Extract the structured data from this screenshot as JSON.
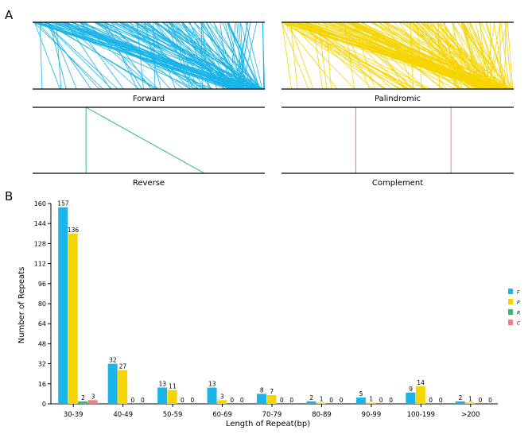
{
  "panel_a": {
    "label": "A",
    "panels": [
      {
        "name": "forward",
        "title": "Forward",
        "color": "#1AB4E8",
        "links": 157
      },
      {
        "name": "palindromic",
        "title": "Palindromic",
        "color": "#F5D400",
        "links": 179
      },
      {
        "name": "reverse",
        "title": "Reverse",
        "color": "#2EC16A",
        "links": 2
      },
      {
        "name": "complement",
        "title": "Complement",
        "color": "#EE8080",
        "links": 3
      }
    ]
  },
  "chart_data": {
    "panel_label": "B",
    "type": "bar",
    "title": "",
    "xlabel": "Length of Repeat(bp)",
    "ylabel": "Number of Repeats",
    "ylim": [
      0,
      160
    ],
    "yticks": [
      0,
      16,
      32,
      48,
      64,
      80,
      96,
      112,
      128,
      144,
      160
    ],
    "grid": false,
    "legend_position": "right",
    "categories": [
      "30-39",
      "40-49",
      "50-59",
      "60-69",
      "70-79",
      "80-89",
      "90-99",
      "100-199",
      ">200"
    ],
    "series": [
      {
        "name": "F",
        "color": "#1AB4E8",
        "values": [
          157,
          32,
          13,
          13,
          8,
          2,
          5,
          9,
          2
        ]
      },
      {
        "name": "P",
        "color": "#F5D400",
        "values": [
          136,
          27,
          11,
          3,
          7,
          1,
          1,
          14,
          1
        ]
      },
      {
        "name": "R",
        "color": "#2EC16A",
        "values": [
          2,
          0,
          0,
          0,
          0,
          0,
          0,
          0,
          0
        ]
      },
      {
        "name": "C",
        "color": "#EE8080",
        "values": [
          3,
          0,
          0,
          0,
          0,
          0,
          0,
          0,
          0
        ]
      }
    ]
  }
}
